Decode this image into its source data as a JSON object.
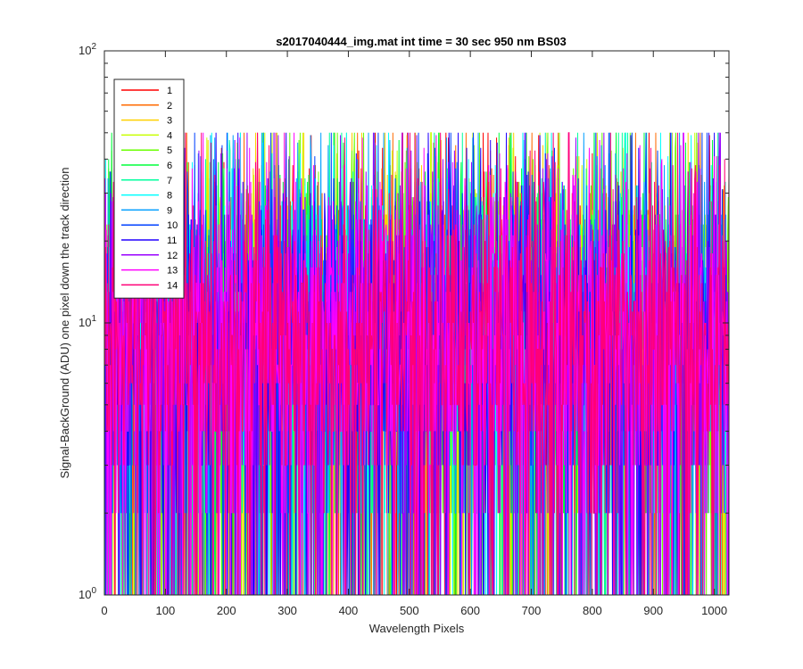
{
  "chart_data": {
    "type": "line",
    "title": "s2017040444_img.mat int time = 30 sec  950 nm BS03",
    "xlabel": "Wavelength Pixels",
    "ylabel": "Signal-BackGround (ADU) one pixel down the track direction",
    "xlim": [
      0,
      1024
    ],
    "ylim": [
      1,
      100
    ],
    "yscale": "log",
    "grid": false,
    "legend_placement": "top-left",
    "x_ticks": [
      "0",
      "100",
      "200",
      "300",
      "400",
      "500",
      "600",
      "700",
      "800",
      "900",
      "1000"
    ],
    "x_tick_values": [
      0,
      100,
      200,
      300,
      400,
      500,
      600,
      700,
      800,
      900,
      1000
    ],
    "y_tick_values": [
      1,
      10,
      100
    ],
    "y_tick_mantissa": "10",
    "y_tick_exponents": [
      "0",
      "1",
      "2"
    ],
    "x": {
      "start": 1,
      "end": 1024,
      "step": 1
    },
    "noise_model": {
      "median": 9,
      "min": 1,
      "max": 50
    },
    "series": [
      {
        "name": "1",
        "color": "#ff0000"
      },
      {
        "name": "2",
        "color": "#ff6a00"
      },
      {
        "name": "3",
        "color": "#ffd000"
      },
      {
        "name": "4",
        "color": "#c8ff00"
      },
      {
        "name": "5",
        "color": "#6aff00"
      },
      {
        "name": "6",
        "color": "#00ff3c"
      },
      {
        "name": "7",
        "color": "#00ff9e"
      },
      {
        "name": "8",
        "color": "#00ffff"
      },
      {
        "name": "9",
        "color": "#009eff"
      },
      {
        "name": "10",
        "color": "#0040ff"
      },
      {
        "name": "11",
        "color": "#2200ff"
      },
      {
        "name": "12",
        "color": "#9900ff"
      },
      {
        "name": "13",
        "color": "#ff00ff"
      },
      {
        "name": "14",
        "color": "#ff0077"
      }
    ]
  }
}
